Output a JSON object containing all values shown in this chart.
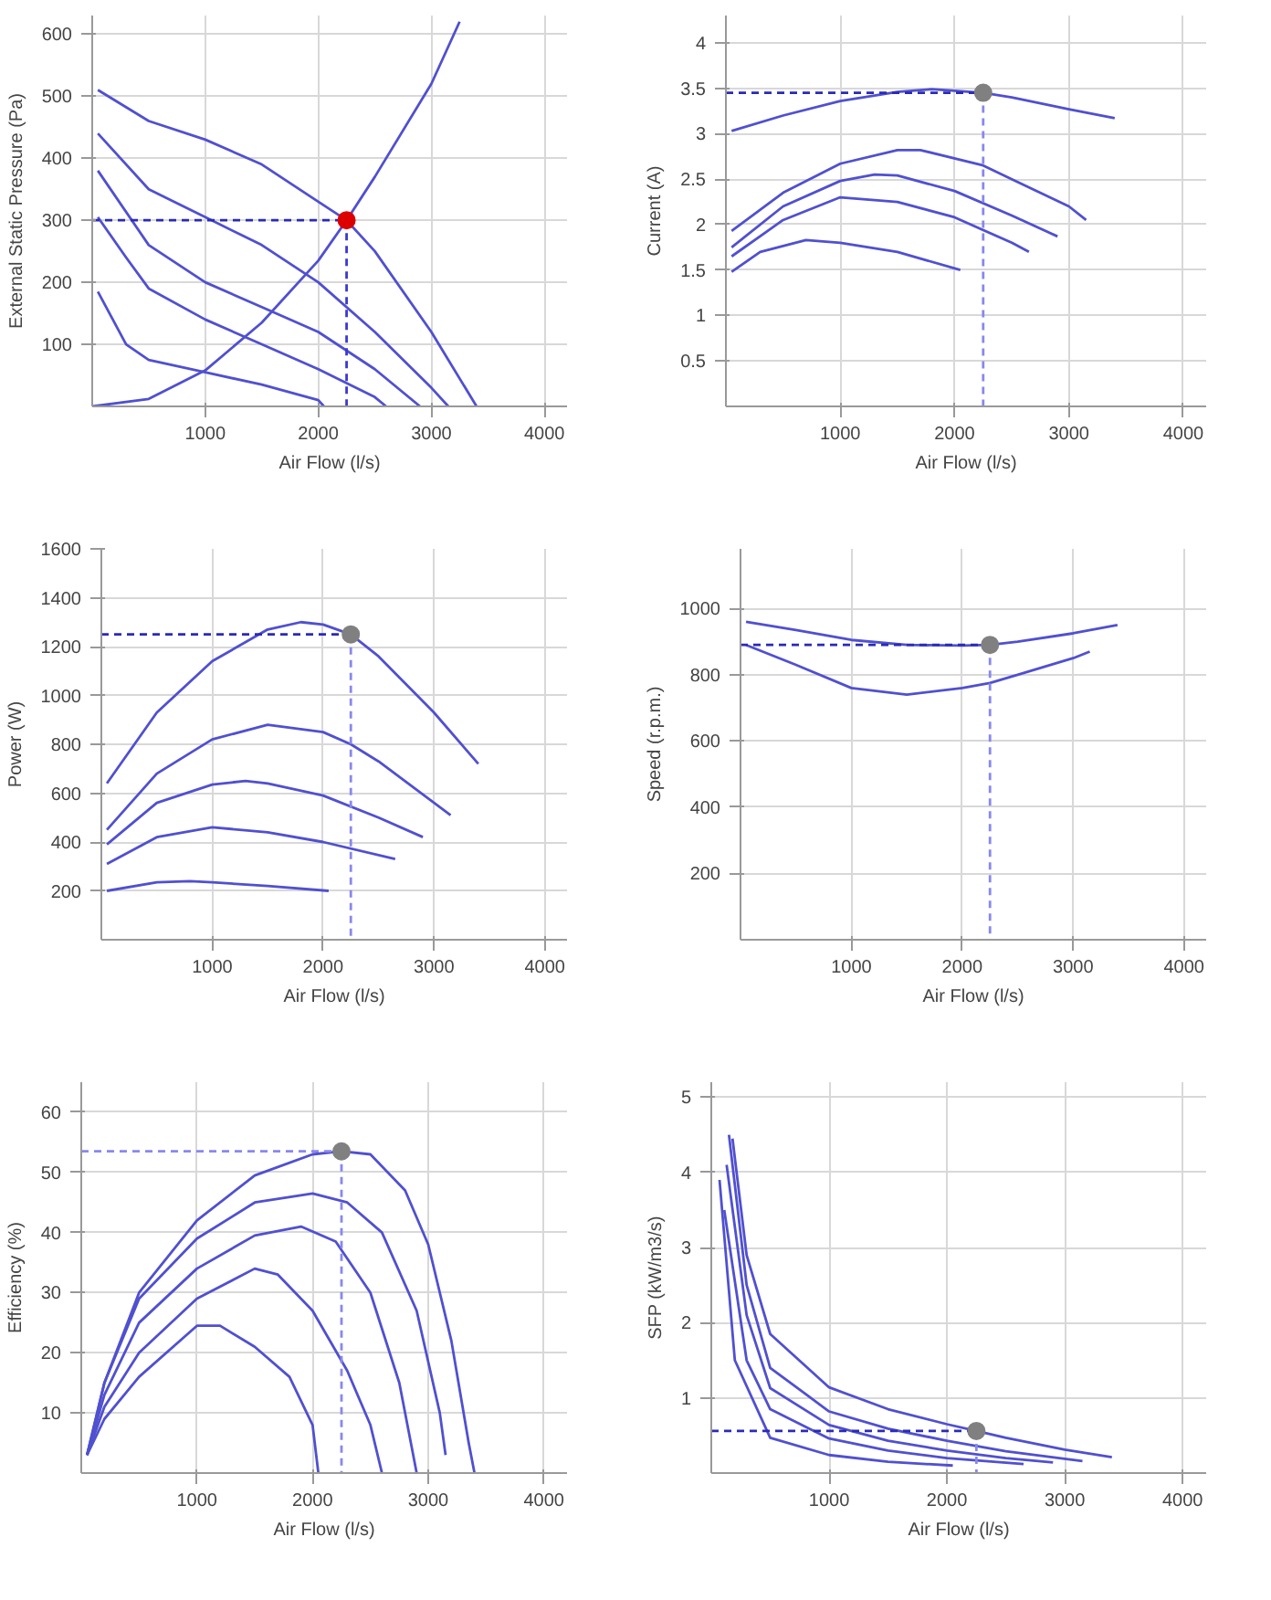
{
  "chart_data": [
    {
      "type": "line",
      "xlabel": "Air Flow (l/s)",
      "ylabel": "External Static Pressure (Pa)",
      "xlim": [
        0,
        4200
      ],
      "ylim": [
        0,
        630
      ],
      "xticks": [
        1000,
        2000,
        3000,
        4000
      ],
      "yticks": [
        100,
        200,
        300,
        400,
        500,
        600
      ],
      "grid": true,
      "series": [
        {
          "color": "#5050d0",
          "x": [
            50,
            500,
            1000,
            1500,
            2000,
            2250,
            2500,
            3000,
            3400
          ],
          "values": [
            510,
            460,
            430,
            390,
            330,
            300,
            250,
            120,
            0
          ]
        },
        {
          "color": "#5050d0",
          "x": [
            50,
            500,
            1000,
            1500,
            2000,
            2500,
            3000,
            3150
          ],
          "values": [
            440,
            350,
            305,
            260,
            200,
            120,
            30,
            0
          ]
        },
        {
          "color": "#5050d0",
          "x": [
            50,
            500,
            1000,
            1500,
            2000,
            2500,
            2900
          ],
          "values": [
            380,
            260,
            200,
            160,
            120,
            60,
            0
          ]
        },
        {
          "color": "#5050d0",
          "x": [
            50,
            300,
            500,
            1000,
            1500,
            2000,
            2500,
            2600
          ],
          "values": [
            305,
            240,
            190,
            140,
            100,
            60,
            15,
            0
          ]
        },
        {
          "color": "#5050d0",
          "x": [
            50,
            300,
            500,
            1000,
            1500,
            2000,
            2050
          ],
          "values": [
            185,
            100,
            75,
            55,
            35,
            10,
            0
          ]
        },
        {
          "color": "#5050d0",
          "x": [
            0,
            500,
            1000,
            1500,
            2000,
            2250,
            2500,
            3000,
            3250
          ],
          "values": [
            0,
            12,
            58,
            135,
            235,
            300,
            370,
            520,
            620
          ]
        },
        {
          "color": "#2a2ab8",
          "line_style": "dashed",
          "x": [
            0,
            2250
          ],
          "values": [
            300,
            300
          ]
        },
        {
          "color": "#3a3ad0",
          "line_style": "dashed",
          "x": [
            2250,
            2250
          ],
          "values": [
            300,
            0
          ]
        },
        {
          "type": "scatter",
          "marker": "circle",
          "color": "#dd0000",
          "x": [
            2250
          ],
          "values": [
            300
          ]
        }
      ]
    },
    {
      "type": "line",
      "xlabel": "Air Flow (l/s)",
      "ylabel": "Current (A)",
      "xlim": [
        0,
        4200
      ],
      "ylim": [
        0,
        4.3
      ],
      "xticks": [
        1000,
        2000,
        3000,
        4000
      ],
      "yticks": [
        0.5,
        1,
        1.5,
        2,
        2.5,
        3,
        3.5,
        4
      ],
      "grid": true,
      "series": [
        {
          "color": "#5050d0",
          "x": [
            50,
            500,
            1000,
            1500,
            1800,
            2250,
            2500,
            3000,
            3400
          ],
          "values": [
            3.03,
            3.2,
            3.36,
            3.46,
            3.49,
            3.45,
            3.4,
            3.27,
            3.17
          ]
        },
        {
          "color": "#5050d0",
          "x": [
            50,
            500,
            1000,
            1500,
            1700,
            2250,
            2500,
            3000,
            3150
          ],
          "values": [
            1.93,
            2.35,
            2.67,
            2.82,
            2.82,
            2.65,
            2.5,
            2.2,
            2.05
          ]
        },
        {
          "color": "#5050d0",
          "x": [
            50,
            500,
            1000,
            1300,
            1500,
            2000,
            2500,
            2900
          ],
          "values": [
            1.75,
            2.2,
            2.48,
            2.55,
            2.54,
            2.37,
            2.1,
            1.87
          ]
        },
        {
          "color": "#5050d0",
          "x": [
            50,
            500,
            1000,
            1500,
            2000,
            2500,
            2650
          ],
          "values": [
            1.65,
            2.05,
            2.3,
            2.25,
            2.08,
            1.8,
            1.7
          ]
        },
        {
          "color": "#5050d0",
          "x": [
            50,
            300,
            700,
            1000,
            1500,
            2050
          ],
          "values": [
            1.48,
            1.7,
            1.83,
            1.8,
            1.7,
            1.5
          ]
        },
        {
          "color": "#2a2ab8",
          "line_style": "dashed",
          "x": [
            0,
            2250
          ],
          "values": [
            3.45,
            3.45
          ]
        },
        {
          "color": "#8888ee",
          "line_style": "dashed",
          "x": [
            2250,
            2250
          ],
          "values": [
            3.45,
            0
          ]
        },
        {
          "type": "scatter",
          "marker": "circle",
          "color": "#808080",
          "x": [
            2250
          ],
          "values": [
            3.45
          ]
        }
      ]
    },
    {
      "type": "line",
      "xlabel": "Air Flow (l/s)",
      "ylabel": "Power (W)",
      "xlim": [
        0,
        4200
      ],
      "ylim": [
        0,
        1600
      ],
      "xticks": [
        1000,
        2000,
        3000,
        4000
      ],
      "yticks": [
        200,
        400,
        600,
        800,
        1000,
        1200,
        1400,
        1600
      ],
      "grid": true,
      "series": [
        {
          "color": "#5050d0",
          "x": [
            50,
            500,
            1000,
            1500,
            1800,
            2000,
            2250,
            2500,
            3000,
            3400
          ],
          "values": [
            640,
            930,
            1140,
            1270,
            1300,
            1290,
            1250,
            1160,
            930,
            720
          ]
        },
        {
          "color": "#5050d0",
          "x": [
            50,
            500,
            1000,
            1500,
            2000,
            2250,
            2500,
            3150
          ],
          "values": [
            450,
            680,
            820,
            880,
            850,
            800,
            730,
            510
          ]
        },
        {
          "color": "#5050d0",
          "x": [
            50,
            500,
            1000,
            1300,
            1500,
            2000,
            2500,
            2900
          ],
          "values": [
            390,
            560,
            635,
            650,
            640,
            590,
            500,
            420
          ]
        },
        {
          "color": "#5050d0",
          "x": [
            50,
            500,
            1000,
            1500,
            2000,
            2650
          ],
          "values": [
            310,
            420,
            460,
            440,
            400,
            330
          ]
        },
        {
          "color": "#5050d0",
          "x": [
            50,
            500,
            800,
            1000,
            1500,
            2050
          ],
          "values": [
            200,
            235,
            240,
            235,
            220,
            200
          ]
        },
        {
          "color": "#2a2ab8",
          "line_style": "dashed",
          "x": [
            0,
            2250
          ],
          "values": [
            1250,
            1250
          ]
        },
        {
          "color": "#8888ee",
          "line_style": "dashed",
          "x": [
            2250,
            2250
          ],
          "values": [
            1250,
            0
          ]
        },
        {
          "type": "scatter",
          "marker": "circle",
          "color": "#808080",
          "x": [
            2250
          ],
          "values": [
            1250
          ]
        }
      ]
    },
    {
      "type": "line",
      "xlabel": "Air Flow (l/s)",
      "ylabel": "Speed (r.p.m.)",
      "xlim": [
        0,
        4200
      ],
      "ylim": [
        0,
        1180
      ],
      "xticks": [
        1000,
        2000,
        3000,
        4000
      ],
      "yticks": [
        200,
        400,
        600,
        800,
        1000
      ],
      "grid": true,
      "series": [
        {
          "color": "#5050d0",
          "x": [
            50,
            500,
            1000,
            1500,
            2000,
            2250,
            2500,
            3000,
            3400
          ],
          "values": [
            960,
            935,
            905,
            890,
            888,
            890,
            900,
            925,
            950
          ]
        },
        {
          "color": "#5050d0",
          "x": [
            50,
            500,
            1000,
            1500,
            2000,
            2250,
            2500,
            3000,
            3150
          ],
          "values": [
            890,
            830,
            760,
            740,
            760,
            775,
            800,
            850,
            870
          ]
        },
        {
          "color": "#2a2ab8",
          "line_style": "dashed",
          "x": [
            0,
            2250
          ],
          "values": [
            890,
            890
          ]
        },
        {
          "color": "#8888ee",
          "line_style": "dashed",
          "x": [
            2250,
            2250
          ],
          "values": [
            890,
            0
          ]
        },
        {
          "type": "scatter",
          "marker": "circle",
          "color": "#808080",
          "x": [
            2250
          ],
          "values": [
            890
          ]
        }
      ]
    },
    {
      "type": "line",
      "xlabel": "Air Flow (l/s)",
      "ylabel": "Efficiency (%)",
      "xlim": [
        0,
        4200
      ],
      "ylim": [
        0,
        65
      ],
      "xticks": [
        1000,
        2000,
        3000,
        4000
      ],
      "yticks": [
        10,
        20,
        30,
        40,
        50,
        60
      ],
      "grid": true,
      "series": [
        {
          "color": "#5050d0",
          "x": [
            50,
            200,
            500,
            1000,
            1500,
            2000,
            2250,
            2500,
            2800,
            3000,
            3200,
            3350,
            3400
          ],
          "values": [
            3,
            15,
            30,
            42,
            49.5,
            53,
            53.5,
            53,
            47,
            38,
            22,
            5,
            0
          ]
        },
        {
          "color": "#5050d0",
          "x": [
            50,
            200,
            500,
            1000,
            1500,
            2000,
            2300,
            2600,
            2900,
            3100,
            3150
          ],
          "values": [
            3,
            15,
            29,
            39,
            45,
            46.5,
            45,
            40,
            27,
            10,
            3
          ]
        },
        {
          "color": "#5050d0",
          "x": [
            50,
            200,
            500,
            1000,
            1500,
            1900,
            2200,
            2500,
            2750,
            2850,
            2900
          ],
          "values": [
            3,
            13,
            25,
            34,
            39.5,
            41,
            38.5,
            30,
            15,
            5,
            0
          ]
        },
        {
          "color": "#5050d0",
          "x": [
            50,
            200,
            500,
            1000,
            1500,
            1700,
            2000,
            2300,
            2500,
            2600
          ],
          "values": [
            3,
            11,
            20,
            29,
            34,
            33,
            27,
            17,
            8,
            0
          ]
        },
        {
          "color": "#5050d0",
          "x": [
            50,
            200,
            500,
            1000,
            1200,
            1500,
            1800,
            2000,
            2050
          ],
          "values": [
            3,
            9,
            16,
            24.5,
            24.5,
            21,
            16,
            8,
            0
          ]
        },
        {
          "color": "#8888ee",
          "line_style": "dashed",
          "x": [
            0,
            2250
          ],
          "values": [
            53.5,
            53.5
          ]
        },
        {
          "color": "#8888ee",
          "line_style": "dashed",
          "x": [
            2250,
            2250
          ],
          "values": [
            53.5,
            0
          ]
        },
        {
          "type": "scatter",
          "marker": "circle",
          "color": "#808080",
          "x": [
            2250
          ],
          "values": [
            53.5
          ]
        }
      ]
    },
    {
      "type": "line",
      "xlabel": "Air Flow (l/s)",
      "ylabel": "SFP (kW/m3/s)",
      "xlim": [
        0,
        4200
      ],
      "ylim": [
        0,
        5.2
      ],
      "xticks": [
        1000,
        2000,
        3000,
        4000
      ],
      "yticks": [
        1,
        2,
        3,
        4,
        5
      ],
      "grid": true,
      "series": [
        {
          "color": "#5050d0",
          "x": [
            180,
            300,
            500,
            1000,
            1500,
            2000,
            2250,
            2500,
            3000,
            3400
          ],
          "values": [
            4.45,
            2.9,
            1.85,
            1.14,
            0.85,
            0.65,
            0.56,
            0.47,
            0.31,
            0.21
          ]
        },
        {
          "color": "#5050d0",
          "x": [
            150,
            300,
            500,
            1000,
            1500,
            2000,
            2500,
            3150
          ],
          "values": [
            4.5,
            2.5,
            1.4,
            0.82,
            0.59,
            0.43,
            0.29,
            0.16
          ]
        },
        {
          "color": "#5050d0",
          "x": [
            130,
            300,
            500,
            1000,
            1500,
            2000,
            2500,
            2900
          ],
          "values": [
            4.1,
            2.1,
            1.13,
            0.64,
            0.43,
            0.3,
            0.2,
            0.14
          ]
        },
        {
          "color": "#5050d0",
          "x": [
            110,
            300,
            500,
            1000,
            1500,
            2000,
            2650
          ],
          "values": [
            3.5,
            1.5,
            0.85,
            0.46,
            0.3,
            0.2,
            0.12
          ]
        },
        {
          "color": "#5050d0",
          "x": [
            70,
            200,
            500,
            1000,
            1500,
            2050
          ],
          "values": [
            3.9,
            1.5,
            0.47,
            0.24,
            0.15,
            0.1
          ]
        },
        {
          "color": "#2a2ab8",
          "line_style": "dashed",
          "x": [
            0,
            2250
          ],
          "values": [
            0.56,
            0.56
          ]
        },
        {
          "color": "#8888ee",
          "line_style": "dashed",
          "x": [
            2250,
            2250
          ],
          "values": [
            0.56,
            0
          ]
        },
        {
          "type": "scatter",
          "marker": "circle",
          "color": "#808080",
          "x": [
            2250
          ],
          "values": [
            0.56
          ]
        }
      ]
    }
  ]
}
